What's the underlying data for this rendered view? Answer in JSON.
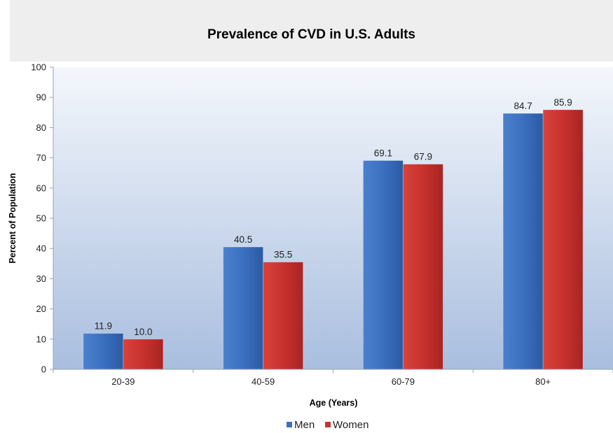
{
  "chart_data": {
    "type": "bar",
    "title": "Prevalence of CVD in U.S. Adults",
    "xlabel": "Age (Years)",
    "ylabel": "Percent of Population",
    "categories": [
      "20-39",
      "40-59",
      "60-79",
      "80+"
    ],
    "series": [
      {
        "name": "Men",
        "values": [
          11.9,
          40.5,
          69.1,
          84.7
        ],
        "labels": [
          "11.9",
          "40.5",
          "69.1",
          "84.7"
        ],
        "color": "#3a6fbf"
      },
      {
        "name": "Women",
        "values": [
          10.0,
          35.5,
          67.9,
          85.9
        ],
        "labels": [
          "10.0",
          "35.5",
          "67.9",
          "85.9"
        ],
        "color": "#c8322e"
      }
    ],
    "ylim": [
      0,
      100
    ],
    "yticks": [
      0,
      10,
      20,
      30,
      40,
      50,
      60,
      70,
      80,
      90,
      100
    ],
    "grid": false,
    "legend_position": "bottom-center",
    "plot_background": [
      "#f4f7fc",
      "#a9bedf"
    ]
  }
}
